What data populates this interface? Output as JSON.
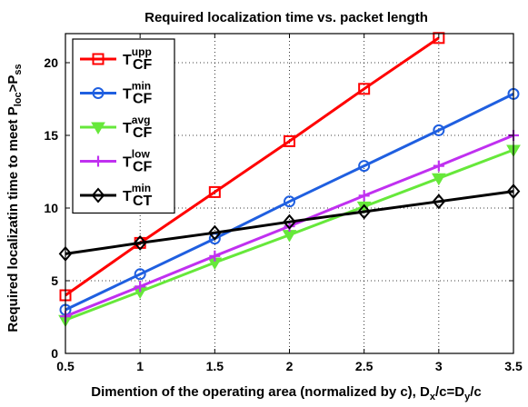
{
  "chart_data": {
    "type": "line",
    "title": "Required localization time vs. packet length",
    "xlabel": {
      "parts": [
        {
          "t": "Dimention of the operating area (normalized by c), D"
        },
        {
          "t": "x",
          "sub": true
        },
        {
          "t": "/c=D"
        },
        {
          "t": "y",
          "sub": true
        },
        {
          "t": "/c"
        }
      ]
    },
    "ylabel": {
      "parts": [
        {
          "t": "Required localizatin time to meet P"
        },
        {
          "t": "loc",
          "sub": true
        },
        {
          "t": ">P"
        },
        {
          "t": "ss",
          "sub": true
        }
      ]
    },
    "xlim": [
      0.5,
      3.5
    ],
    "ylim": [
      0,
      22
    ],
    "xticks": [
      0.5,
      1,
      1.5,
      2,
      2.5,
      3,
      3.5
    ],
    "xtick_labels": [
      "0.5",
      "1",
      "1.5",
      "2",
      "2.5",
      "3",
      "3.5"
    ],
    "yticks": [
      0,
      5,
      10,
      15,
      20
    ],
    "ytick_labels": [
      "0",
      "5",
      "10",
      "15",
      "20"
    ],
    "grid": true,
    "legend_position": "top-left",
    "x": [
      0.5,
      1,
      1.5,
      2,
      2.5,
      3,
      3.5
    ],
    "series": [
      {
        "label_main": "T",
        "label_sup": "upp",
        "label_sub": "CF",
        "color": "#ff0000",
        "marker": "square",
        "values": [
          4.0,
          7.6,
          11.1,
          14.6,
          18.2,
          21.7,
          null
        ]
      },
      {
        "label_main": "T",
        "label_sup": "min",
        "label_sub": "CF",
        "color": "#1f5fe0",
        "marker": "circle",
        "values": [
          3.0,
          5.45,
          7.9,
          10.45,
          12.9,
          15.35,
          17.85
        ]
      },
      {
        "label_main": "T",
        "label_sup": "avg",
        "label_sub": "CF",
        "color": "#66e83a",
        "marker": "triangle-down",
        "values": [
          2.3,
          4.25,
          6.25,
          8.15,
          10.1,
          12.05,
          14.0
        ]
      },
      {
        "label_main": "T",
        "label_sup": "low",
        "label_sub": "CF",
        "color": "#c030f0",
        "marker": "plus",
        "values": [
          2.55,
          4.6,
          6.7,
          8.75,
          10.85,
          12.9,
          15.0
        ]
      },
      {
        "label_main": "T",
        "label_sup": "min",
        "label_sub": "CT",
        "color": "#000000",
        "marker": "diamond",
        "values": [
          6.85,
          7.6,
          8.3,
          9.05,
          9.75,
          10.45,
          11.15
        ]
      }
    ]
  }
}
